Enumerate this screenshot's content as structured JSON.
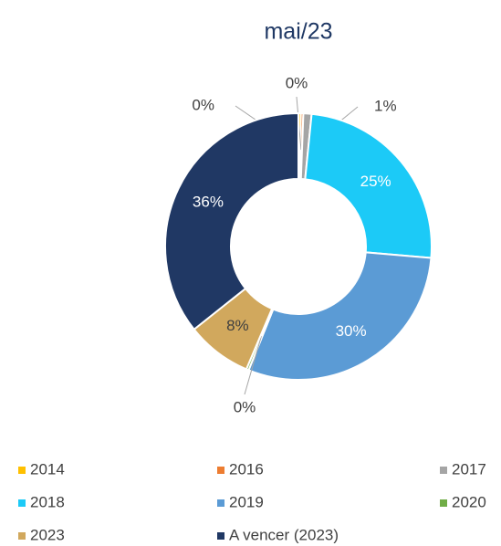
{
  "chart_data": {
    "type": "donut",
    "title": "mai/23",
    "categories": [
      "2014",
      "2016",
      "2017",
      "2018",
      "2019",
      "2020",
      "2023",
      "A vencer (2023)"
    ],
    "values": [
      0.3,
      0.3,
      1,
      25,
      30,
      0.3,
      8,
      36
    ],
    "value_labels": [
      "0%",
      "0%",
      "1%",
      "25%",
      "30%",
      "0%",
      "8%",
      "36%"
    ],
    "colors": [
      "#ffc000",
      "#ed7d31",
      "#a5a5a5",
      "#1ccaf7",
      "#5b9bd5",
      "#70ad47",
      "#d1a85d",
      "#203864"
    ],
    "legend": "bottom"
  }
}
